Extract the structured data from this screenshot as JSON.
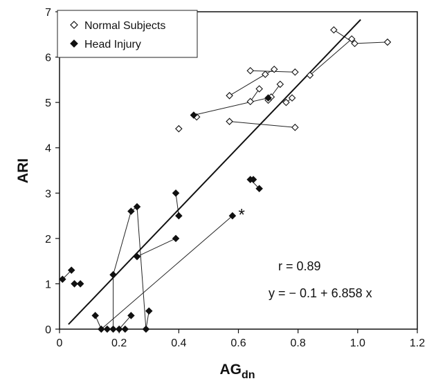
{
  "chart_data": {
    "type": "scatter",
    "xlabel": "AG",
    "xlabel_sub": "dn",
    "ylabel": "ARI",
    "xlim": [
      0,
      1.2
    ],
    "ylim": [
      0,
      7
    ],
    "x_ticks": [
      "0",
      "0.2",
      "0.4",
      "0.6",
      "0.8",
      "1.0",
      "1.2"
    ],
    "y_ticks": [
      "0",
      "1",
      "2",
      "3",
      "4",
      "5",
      "6",
      "7"
    ],
    "grid": false,
    "legend_position": "top-left",
    "series": [
      {
        "name": "Normal Subjects",
        "marker": "open-diamond",
        "points": [
          [
            0.92,
            6.6
          ],
          [
            0.98,
            6.4
          ],
          [
            0.99,
            6.3
          ],
          [
            1.1,
            6.33
          ],
          [
            0.84,
            5.6
          ],
          [
            0.64,
            5.7
          ],
          [
            0.69,
            5.62
          ],
          [
            0.72,
            5.73
          ],
          [
            0.79,
            5.67
          ],
          [
            0.57,
            5.15
          ],
          [
            0.74,
            5.4
          ],
          [
            0.67,
            5.3
          ],
          [
            0.64,
            5.02
          ],
          [
            0.7,
            5.05
          ],
          [
            0.71,
            5.12
          ],
          [
            0.76,
            5.0
          ],
          [
            0.78,
            5.1
          ],
          [
            0.4,
            4.42
          ],
          [
            0.46,
            4.68
          ],
          [
            0.57,
            4.58
          ],
          [
            0.79,
            4.45
          ]
        ],
        "segments": [
          [
            [
              0.92,
              6.6
            ],
            [
              0.99,
              6.3
            ]
          ],
          [
            [
              0.84,
              5.6
            ],
            [
              0.98,
              6.4
            ]
          ],
          [
            [
              0.99,
              6.3
            ],
            [
              1.1,
              6.33
            ]
          ],
          [
            [
              0.64,
              5.7
            ],
            [
              0.79,
              5.67
            ]
          ],
          [
            [
              0.57,
              5.15
            ],
            [
              0.69,
              5.62
            ]
          ],
          [
            [
              0.69,
              5.62
            ],
            [
              0.72,
              5.73
            ]
          ],
          [
            [
              0.64,
              5.02
            ],
            [
              0.67,
              5.3
            ]
          ],
          [
            [
              0.7,
              5.05
            ],
            [
              0.74,
              5.4
            ]
          ],
          [
            [
              0.45,
              4.72
            ],
            [
              0.7,
              5.1
            ]
          ],
          [
            [
              0.57,
              4.58
            ],
            [
              0.79,
              4.45
            ]
          ],
          [
            [
              0.76,
              5.0
            ],
            [
              0.78,
              5.1
            ]
          ]
        ]
      },
      {
        "name": "Head Injury",
        "marker": "filled-diamond",
        "points": [
          [
            0.01,
            1.1
          ],
          [
            0.04,
            1.3
          ],
          [
            0.05,
            1.0
          ],
          [
            0.07,
            1.0
          ],
          [
            0.12,
            0.3
          ],
          [
            0.14,
            0.0
          ],
          [
            0.16,
            0.0
          ],
          [
            0.18,
            0.0
          ],
          [
            0.2,
            0.0
          ],
          [
            0.22,
            0.0
          ],
          [
            0.24,
            0.3
          ],
          [
            0.3,
            0.4
          ],
          [
            0.29,
            0.0
          ],
          [
            0.18,
            1.2
          ],
          [
            0.24,
            2.6
          ],
          [
            0.26,
            2.7
          ],
          [
            0.26,
            1.6
          ],
          [
            0.39,
            2.0
          ],
          [
            0.39,
            3.0
          ],
          [
            0.4,
            2.5
          ],
          [
            0.58,
            2.5
          ],
          [
            0.45,
            4.72
          ],
          [
            0.7,
            5.1
          ],
          [
            0.64,
            3.3
          ],
          [
            0.65,
            3.3
          ],
          [
            0.67,
            3.1
          ]
        ],
        "segments": [
          [
            [
              0.01,
              1.1
            ],
            [
              0.04,
              1.3
            ]
          ],
          [
            [
              0.05,
              1.0
            ],
            [
              0.07,
              1.0
            ]
          ],
          [
            [
              0.12,
              0.3
            ],
            [
              0.14,
              0.0
            ]
          ],
          [
            [
              0.2,
              0.0
            ],
            [
              0.24,
              0.3
            ]
          ],
          [
            [
              0.29,
              0.0
            ],
            [
              0.3,
              0.4
            ]
          ],
          [
            [
              0.14,
              0.0
            ],
            [
              0.58,
              2.5
            ]
          ],
          [
            [
              0.18,
              1.2
            ],
            [
              0.24,
              2.6
            ]
          ],
          [
            [
              0.24,
              2.6
            ],
            [
              0.26,
              2.7
            ]
          ],
          [
            [
              0.26,
              2.7
            ],
            [
              0.29,
              0.0
            ]
          ],
          [
            [
              0.18,
              1.2
            ],
            [
              0.18,
              0.0
            ]
          ],
          [
            [
              0.26,
              1.6
            ],
            [
              0.39,
              2.0
            ]
          ],
          [
            [
              0.39,
              3.0
            ],
            [
              0.4,
              2.5
            ]
          ],
          [
            [
              0.64,
              3.3
            ],
            [
              0.67,
              3.1
            ]
          ]
        ]
      }
    ],
    "regression": {
      "intercept": -0.1,
      "slope": 6.858,
      "x_range": [
        0.03,
        1.01
      ]
    },
    "annotations": {
      "r_text": "r = 0.89",
      "eq_text": "y = − 0.1 + 6.858 x",
      "star_text": "*",
      "star_at": [
        0.6,
        2.4
      ]
    }
  }
}
